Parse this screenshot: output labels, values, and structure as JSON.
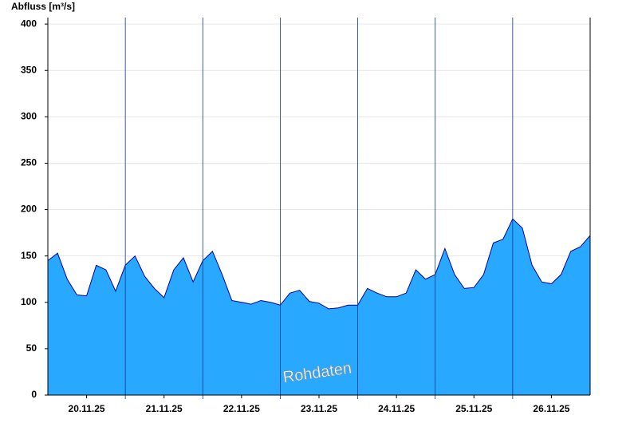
{
  "chart_data": {
    "type": "area",
    "y_label": "Abfluss [m³/s]",
    "annotation": "Rohdaten",
    "x": [
      0,
      0.125,
      0.25,
      0.375,
      0.5,
      0.625,
      0.75,
      0.875,
      1,
      1.125,
      1.25,
      1.375,
      1.5,
      1.625,
      1.75,
      1.875,
      2,
      2.125,
      2.25,
      2.375,
      2.5,
      2.625,
      2.75,
      2.875,
      3,
      3.125,
      3.25,
      3.375,
      3.5,
      3.625,
      3.75,
      3.875,
      4,
      4.125,
      4.25,
      4.375,
      4.5,
      4.625,
      4.75,
      4.875,
      5,
      5.125,
      5.25,
      5.375,
      5.5,
      5.625,
      5.75,
      5.875,
      6,
      6.125,
      6.25,
      6.375,
      6.5,
      6.625,
      6.75,
      6.875,
      7
    ],
    "values": [
      145,
      153,
      125,
      108,
      107,
      140,
      135,
      112,
      140,
      150,
      128,
      115,
      105,
      135,
      148,
      122,
      145,
      155,
      130,
      102,
      100,
      98,
      102,
      100,
      97,
      110,
      113,
      101,
      99,
      93,
      94,
      97,
      97,
      115,
      110,
      106,
      106,
      110,
      135,
      125,
      130,
      158,
      130,
      115,
      116,
      130,
      164,
      168,
      190,
      180,
      140,
      122,
      120,
      130,
      155,
      160,
      172
    ],
    "color": "#29a8ff",
    "line_color": "#0000a0",
    "xlim": [
      0,
      7
    ],
    "ylim": [
      0,
      407
    ],
    "xticks": [
      {
        "value": 0.5,
        "label": "20.11.25"
      },
      {
        "value": 1.5,
        "label": "21.11.25"
      },
      {
        "value": 2.5,
        "label": "22.11.25"
      },
      {
        "value": 3.5,
        "label": "23.11.25"
      },
      {
        "value": 4.5,
        "label": "24.11.25"
      },
      {
        "value": 5.5,
        "label": "25.11.25"
      },
      {
        "value": 6.5,
        "label": "26.11.25"
      }
    ],
    "day_lines": [
      1,
      2,
      3,
      4,
      5,
      6
    ],
    "yticks": [
      0,
      50,
      100,
      150,
      200,
      250,
      300,
      350,
      400
    ],
    "grid": true
  }
}
